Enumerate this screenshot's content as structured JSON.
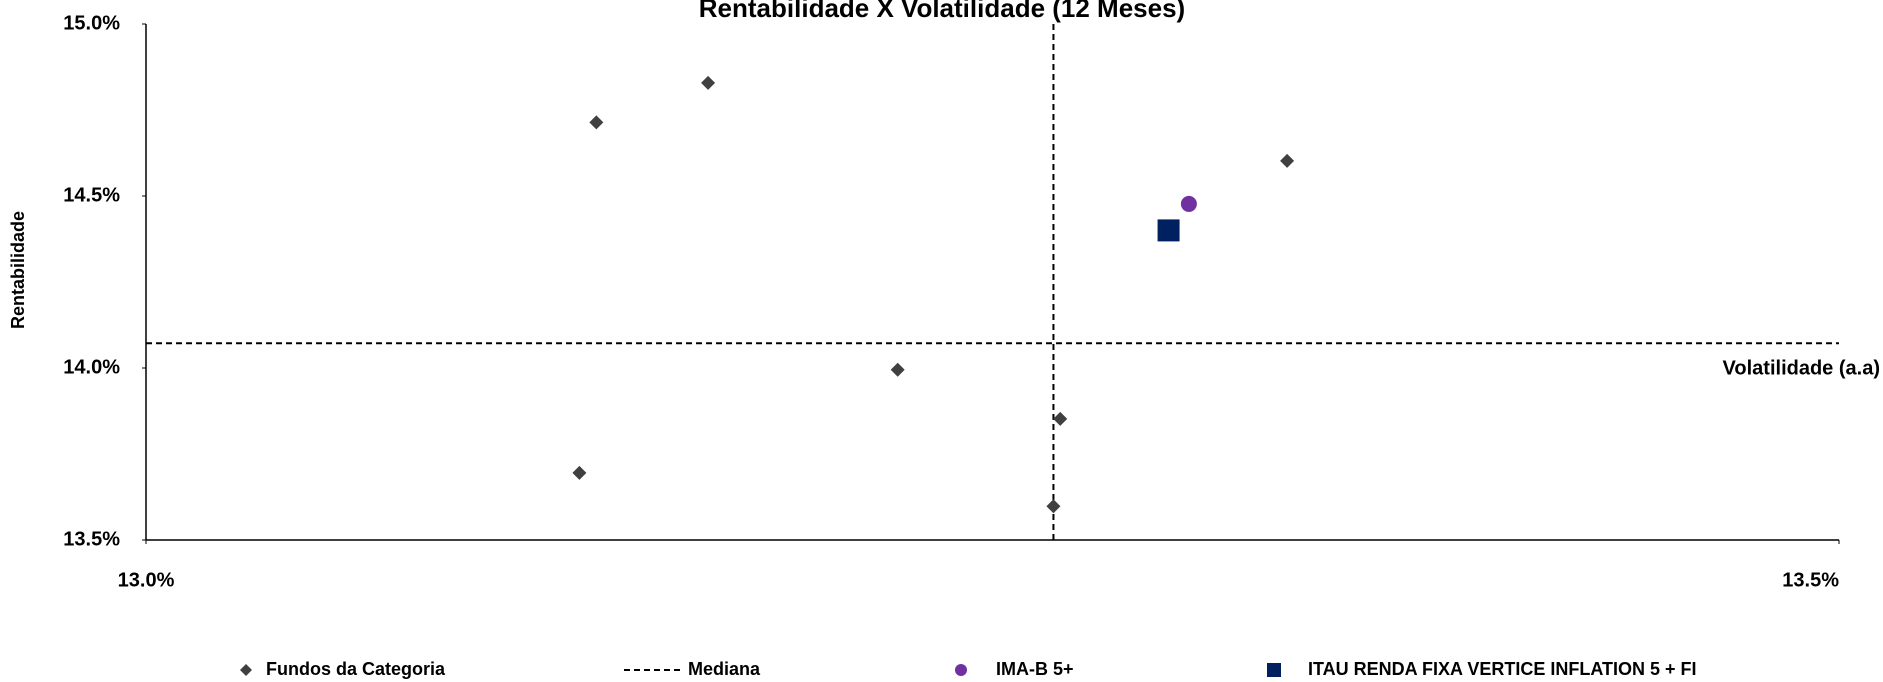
{
  "chart_data": {
    "type": "scatter",
    "title": "Rentabilidade X Volatilidade (12 Meses)",
    "x_label": "Volatilidade (a.a)",
    "y_label": "Rentabilidade",
    "xlim": [
      13.0,
      13.5
    ],
    "ylim": [
      13.5,
      15.0
    ],
    "xticks": [
      {
        "value": 13.0,
        "label": "13.0%"
      },
      {
        "value": 13.5,
        "label": "13.5%"
      }
    ],
    "yticks": [
      {
        "value": 13.5,
        "label": "13.5%"
      },
      {
        "value": 14.0,
        "label": "14.0%"
      },
      {
        "value": 14.5,
        "label": "14.5%"
      },
      {
        "value": 15.0,
        "label": "15.0%"
      }
    ],
    "grid": false,
    "series": [
      {
        "name": "Fundos da Categoria",
        "marker": "diamond",
        "color": "#404040",
        "x": [
          13.133,
          13.166,
          13.337,
          13.222,
          13.27,
          13.128,
          13.268
        ],
        "values": [
          14.714,
          14.829,
          14.602,
          13.995,
          13.852,
          13.695,
          13.598
        ]
      },
      {
        "name": "IMA-B 5+",
        "marker": "circle",
        "color": "#7030a0",
        "x": [
          13.308
        ],
        "values": [
          14.477
        ]
      },
      {
        "name": "ITAU RENDA FIXA VERTICE INFLATION 5 + FI",
        "marker": "square",
        "color": "#002060",
        "x": [
          13.302
        ],
        "values": [
          14.4
        ]
      }
    ],
    "median": {
      "name": "Mediana",
      "x": 13.268,
      "y": 14.072,
      "color": "#000000"
    }
  }
}
